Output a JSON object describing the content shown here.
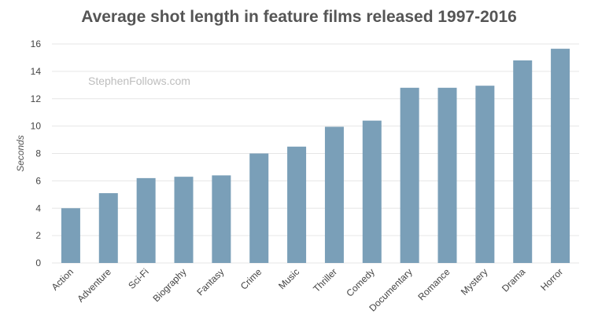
{
  "chart_data": {
    "type": "bar",
    "title": "Average shot length in feature films released 1997-2016",
    "watermark": "StephenFollows.com",
    "xlabel": "",
    "ylabel": "Seconds",
    "ylim": [
      0,
      16
    ],
    "yticks": [
      0,
      2,
      4,
      6,
      8,
      10,
      12,
      14,
      16
    ],
    "grid": true,
    "categories": [
      "Action",
      "Adventure",
      "Sci-Fi",
      "Biography",
      "Fantasy",
      "Crime",
      "Music",
      "Thriller",
      "Comedy",
      "Documentary",
      "Romance",
      "Mystery",
      "Drama",
      "Horror"
    ],
    "values": [
      4.0,
      5.1,
      6.2,
      6.3,
      6.4,
      8.0,
      8.5,
      9.95,
      10.4,
      12.8,
      12.8,
      12.95,
      14.8,
      15.65
    ],
    "bar_color": "#7a9fb8",
    "grid_color": "#e6e6e6"
  }
}
